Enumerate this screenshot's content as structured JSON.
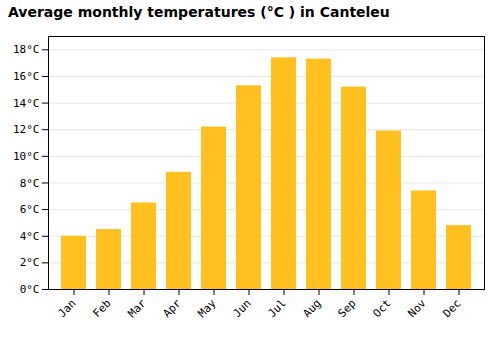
{
  "chart_data": {
    "type": "bar",
    "title": "Average monthly temperatures (°C ) in Canteleu",
    "categories": [
      "Jan",
      "Feb",
      "Mar",
      "Apr",
      "May",
      "Jun",
      "Jul",
      "Aug",
      "Sep",
      "Oct",
      "Nov",
      "Dec"
    ],
    "values": [
      4.0,
      4.5,
      6.5,
      8.8,
      12.2,
      15.3,
      17.4,
      17.3,
      15.2,
      11.9,
      7.4,
      4.8
    ],
    "color": "#FFC020",
    "ylim": [
      0,
      19
    ],
    "yticks": [
      {
        "value": 0,
        "label": "0°C"
      },
      {
        "value": 2,
        "label": "2°C"
      },
      {
        "value": 4,
        "label": "4°C"
      },
      {
        "value": 6,
        "label": "6°C"
      },
      {
        "value": 8,
        "label": "8°C"
      },
      {
        "value": 10,
        "label": "10°C"
      },
      {
        "value": 12,
        "label": "12°C"
      },
      {
        "value": 14,
        "label": "14°C"
      },
      {
        "value": 16,
        "label": "16°C"
      },
      {
        "value": 18,
        "label": "18°C"
      }
    ],
    "grid": true
  }
}
